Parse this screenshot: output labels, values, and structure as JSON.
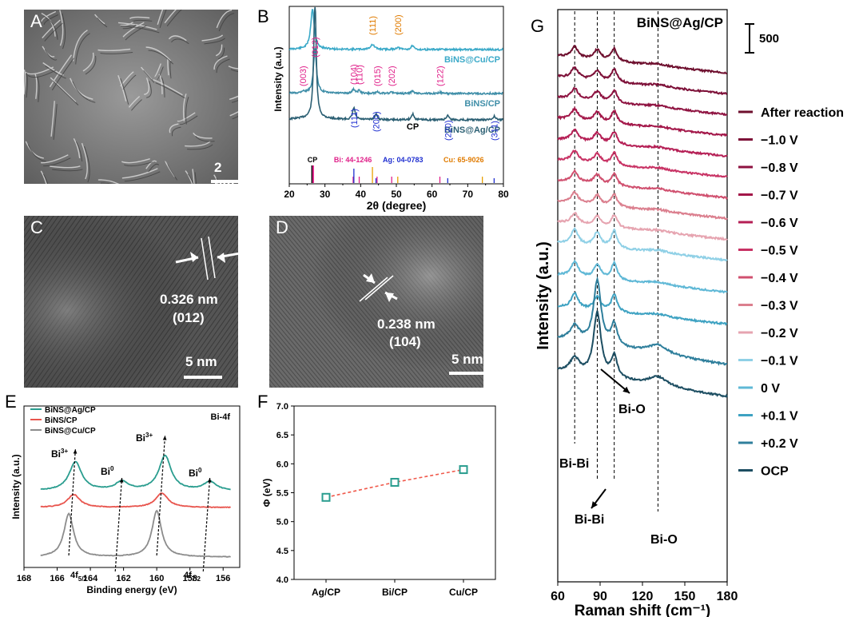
{
  "figure": {
    "panels": {
      "A": {
        "label": "A",
        "scale_bar": "2 μm"
      },
      "B": {
        "label": "B"
      },
      "C": {
        "label": "C",
        "d_spacing": "0.326 nm",
        "plane": "(012)",
        "scale_bar": "5 nm"
      },
      "D": {
        "label": "D",
        "d_spacing": "0.238 nm",
        "plane": "(104)",
        "scale_bar": "5 nm"
      },
      "E": {
        "label": "E"
      },
      "F": {
        "label": "F"
      },
      "G": {
        "label": "G"
      }
    }
  },
  "chart_data": [
    {
      "id": "B",
      "type": "line",
      "title": "",
      "xlabel": "2θ (degree)",
      "ylabel": "Intensity (a.u.)",
      "xlim": [
        20,
        80
      ],
      "xticks": [
        "20",
        "30",
        "40",
        "50",
        "60",
        "70",
        "80"
      ],
      "series": [
        {
          "name": "BiNS@Cu/CP",
          "color": "#3aa9c8",
          "peaks_2theta": [
            26.5,
            43.3,
            50.4,
            54.5
          ]
        },
        {
          "name": "BiNS/CP",
          "color": "#3f8ea8",
          "peaks_2theta": [
            23.8,
            27.2,
            38.0,
            39.6,
            44.6,
            48.7,
            54.5,
            62.2
          ]
        },
        {
          "name": "BiNS@Ag/CP",
          "color": "#2b5f73",
          "peaks_2theta": [
            27.2,
            38.1,
            44.3,
            54.6,
            64.4,
            77.4
          ]
        }
      ],
      "peak_labels": {
        "cu": [
          {
            "text": "(111)",
            "x": 43.3
          },
          {
            "text": "(200)",
            "x": 50.4
          }
        ],
        "bi": [
          {
            "text": "(003)",
            "x": 23.8
          },
          {
            "text": "(012)",
            "x": 27.2
          },
          {
            "text": "(104)",
            "x": 38.0
          },
          {
            "text": "(110)",
            "x": 39.6
          },
          {
            "text": "(015)",
            "x": 44.6
          },
          {
            "text": "(202)",
            "x": 48.7
          },
          {
            "text": "(122)",
            "x": 62.2
          }
        ],
        "ag": [
          {
            "text": "(111)",
            "x": 38.1
          },
          {
            "text": "(200)",
            "x": 44.3
          },
          {
            "text": "(220)",
            "x": 64.4
          },
          {
            "text": "(311)",
            "x": 77.4
          }
        ],
        "cp": {
          "text": "CP",
          "x": 54.6
        }
      },
      "reference_cards": {
        "cp_label": "CP",
        "bi_label": "Bi: 44-1246",
        "ag_label": "Ag: 04-0783",
        "cu_label": "Cu: 65-9026",
        "cp_lines": [
          26.4,
          26.7
        ],
        "bi_lines": [
          27.2,
          37.9,
          39.6,
          44.6,
          48.7,
          62.2
        ],
        "ag_lines": [
          38.1,
          44.3,
          64.4,
          77.4
        ],
        "cu_lines": [
          43.3,
          50.4,
          74.1
        ]
      }
    },
    {
      "id": "E",
      "type": "line",
      "title": "Bi-4f",
      "xlabel": "Binding energy (eV)",
      "ylabel": "Intensity (a.u.)",
      "xlim": [
        168,
        155
      ],
      "xticks": [
        "168",
        "166",
        "164",
        "162",
        "160",
        "158",
        "156"
      ],
      "series": [
        {
          "name": "BiNS@Ag/CP",
          "color": "#2a9d8f",
          "peaks_eV": [
            164.9,
            162.1,
            159.5,
            156.8
          ]
        },
        {
          "name": "BiNS/CP",
          "color": "#e8554e",
          "peaks_eV": [
            165.0,
            159.7
          ]
        },
        {
          "name": "BiNS@Cu/CP",
          "color": "#8c8c8c",
          "peaks_eV": [
            165.3,
            160.0
          ]
        }
      ],
      "annotations": {
        "bi3_a": "Bi",
        "bi3_a_sup": "3+",
        "bi0_a": "Bi",
        "bi0_a_sup": "0",
        "bi3_b": "Bi",
        "bi3_b_sup": "3+",
        "bi0_b": "Bi",
        "bi0_b_sup": "0",
        "f52": "4f",
        "f52_sub": "5/2",
        "f72": "4f",
        "f72_sub": "7/2"
      }
    },
    {
      "id": "F",
      "type": "scatter",
      "title": "",
      "xlabel": "",
      "ylabel": "Φ (eV)",
      "ylim": [
        4.0,
        7.0
      ],
      "yticks": [
        "4.0",
        "4.5",
        "5.0",
        "5.5",
        "6.0",
        "6.5",
        "7.0"
      ],
      "categories": [
        "Ag/CP",
        "Bi/CP",
        "Cu/CP"
      ],
      "values": [
        5.42,
        5.68,
        5.9
      ]
    },
    {
      "id": "G",
      "type": "line",
      "title": "BiNS@Ag/CP",
      "xlabel": "Raman shift (cm⁻¹)",
      "ylabel": "Intensity (a.u.)",
      "xlim": [
        60,
        180
      ],
      "xticks": [
        "60",
        "90",
        "120",
        "150",
        "180"
      ],
      "scale_bar_label": "500",
      "reference_lines": [
        72,
        88,
        100,
        131
      ],
      "annotations": {
        "bibi_top": "Bi-Bi",
        "bio_mid": "Bi-O",
        "bibi_bottom": "Bi-Bi",
        "bio_bottom": "Bi-O"
      },
      "series": [
        {
          "name": "After reaction",
          "color": "#6e0f2e"
        },
        {
          "name": "−1.0 V",
          "color": "#7d1038"
        },
        {
          "name": "−0.8 V",
          "color": "#8e1240"
        },
        {
          "name": "−0.7 V",
          "color": "#a31749"
        },
        {
          "name": "−0.6 V",
          "color": "#b51f55"
        },
        {
          "name": "−0.5 V",
          "color": "#c83264"
        },
        {
          "name": "−0.4 V",
          "color": "#d0506f"
        },
        {
          "name": "−0.3 V",
          "color": "#db7f8e"
        },
        {
          "name": "−0.2 V",
          "color": "#e6a4b0"
        },
        {
          "name": "−0.1 V",
          "color": "#8fd0e6"
        },
        {
          "name": "0 V",
          "color": "#5fb8d6"
        },
        {
          "name": "+0.1 V",
          "color": "#3ea2c2"
        },
        {
          "name": "+0.2 V",
          "color": "#2f7f9c"
        },
        {
          "name": "OCP",
          "color": "#1d4e62"
        }
      ]
    }
  ]
}
